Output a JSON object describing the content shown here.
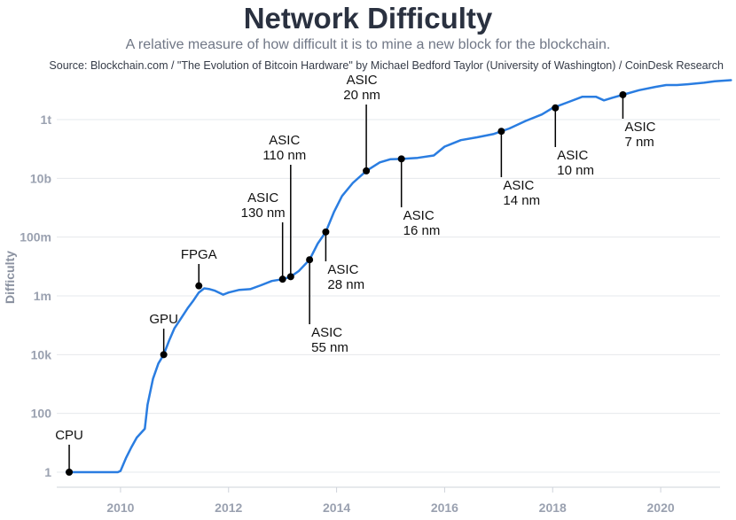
{
  "title": "Network Difficulty",
  "subtitle": "A relative measure of how difficult it is to mine a new block for the blockchain.",
  "source": "Source: Blockchain.com / \"The Evolution of Bitcoin Hardware\" by Michael Bedford Taylor (University of Washington) / CoinDesk Research",
  "colors": {
    "line": "#2a7de1",
    "marker": "#000000",
    "axis_text": "#9aa1b0",
    "grid": "#e6e8ec"
  },
  "chart_data": {
    "type": "line",
    "title": "Network Difficulty",
    "ylabel": "Difficulty",
    "xlabel": "",
    "y_scale": "log",
    "ylim": [
      0.8,
      6000000000000
    ],
    "xlim": [
      2009.0,
      2021.3
    ],
    "y_ticks": [
      {
        "value": 1,
        "label": "1"
      },
      {
        "value": 100,
        "label": "100"
      },
      {
        "value": 10000,
        "label": "10k"
      },
      {
        "value": 1000000,
        "label": "1m"
      },
      {
        "value": 100000000,
        "label": "100m"
      },
      {
        "value": 10000000000,
        "label": "10b"
      },
      {
        "value": 1000000000000,
        "label": "1t"
      }
    ],
    "x_ticks": [
      {
        "value": 2010,
        "label": "2010"
      },
      {
        "value": 2012,
        "label": "2012"
      },
      {
        "value": 2014,
        "label": "2014"
      },
      {
        "value": 2016,
        "label": "2016"
      },
      {
        "value": 2018,
        "label": "2018"
      },
      {
        "value": 2020,
        "label": "2020"
      }
    ],
    "grid": "horizontal",
    "series": [
      {
        "points": [
          [
            2009.0,
            1
          ],
          [
            2009.95,
            1
          ],
          [
            2010.0,
            1.1
          ],
          [
            2010.1,
            3
          ],
          [
            2010.2,
            7
          ],
          [
            2010.3,
            15
          ],
          [
            2010.45,
            30
          ],
          [
            2010.5,
            200
          ],
          [
            2010.6,
            1500
          ],
          [
            2010.7,
            5000
          ],
          [
            2010.8,
            10000
          ],
          [
            2010.9,
            30000
          ],
          [
            2011.0,
            80000
          ],
          [
            2011.1,
            150000
          ],
          [
            2011.25,
            400000
          ],
          [
            2011.35,
            700000
          ],
          [
            2011.45,
            1300000
          ],
          [
            2011.55,
            1800000
          ],
          [
            2011.65,
            1700000
          ],
          [
            2011.75,
            1500000
          ],
          [
            2011.9,
            1100000
          ],
          [
            2012.0,
            1300000
          ],
          [
            2012.2,
            1600000
          ],
          [
            2012.4,
            1700000
          ],
          [
            2012.6,
            2300000
          ],
          [
            2012.8,
            3200000
          ],
          [
            2013.0,
            3700000
          ],
          [
            2013.15,
            4500000
          ],
          [
            2013.3,
            7000000
          ],
          [
            2013.5,
            17000000
          ],
          [
            2013.65,
            60000000
          ],
          [
            2013.8,
            150000000
          ],
          [
            2013.95,
            700000000
          ],
          [
            2014.1,
            2500000000
          ],
          [
            2014.3,
            7000000000
          ],
          [
            2014.55,
            18000000000
          ],
          [
            2014.8,
            35000000000
          ],
          [
            2015.0,
            45000000000
          ],
          [
            2015.2,
            46000000000
          ],
          [
            2015.5,
            50000000000
          ],
          [
            2015.8,
            60000000000
          ],
          [
            2016.0,
            120000000000
          ],
          [
            2016.3,
            200000000000
          ],
          [
            2016.6,
            250000000000
          ],
          [
            2016.9,
            320000000000
          ],
          [
            2017.2,
            500000000000
          ],
          [
            2017.5,
            900000000000
          ],
          [
            2017.8,
            1500000000000
          ],
          [
            2018.0,
            2500000000000
          ],
          [
            2018.3,
            4000000000000
          ],
          [
            2018.55,
            6000000000000
          ],
          [
            2018.8,
            6000000000000
          ],
          [
            2018.95,
            4500000000000
          ],
          [
            2019.1,
            5500000000000
          ],
          [
            2019.3,
            7000000000000
          ],
          [
            2019.6,
            10000000000000
          ],
          [
            2019.9,
            13000000000000
          ],
          [
            2020.1,
            15000000000000
          ],
          [
            2020.3,
            15000000000000
          ],
          [
            2020.5,
            16000000000000
          ],
          [
            2020.8,
            18000000000000
          ],
          [
            2021.0,
            20000000000000
          ],
          [
            2021.3,
            22000000000000
          ]
        ]
      }
    ],
    "annotations": [
      {
        "x": 2009.05,
        "y": 1,
        "lines": [
          "CPU"
        ]
      },
      {
        "x": 2010.8,
        "y": 10000,
        "lines": [
          "GPU"
        ]
      },
      {
        "x": 2011.45,
        "y": 2200000,
        "lines": [
          "FPGA"
        ]
      },
      {
        "x": 2013.0,
        "y": 3700000,
        "lines": [
          "ASIC",
          "130 nm"
        ]
      },
      {
        "x": 2013.15,
        "y": 4500000,
        "lines": [
          "ASIC",
          "110 nm"
        ]
      },
      {
        "x": 2013.5,
        "y": 17000000,
        "lines": [
          "ASIC",
          "55 nm"
        ]
      },
      {
        "x": 2013.8,
        "y": 150000000,
        "lines": [
          "ASIC",
          "28 nm"
        ]
      },
      {
        "x": 2014.55,
        "y": 18000000000,
        "lines": [
          "ASIC",
          "20 nm"
        ]
      },
      {
        "x": 2015.2,
        "y": 46000000000,
        "lines": [
          "ASIC",
          "16 nm"
        ]
      },
      {
        "x": 2017.05,
        "y": 400000000000,
        "lines": [
          "ASIC",
          "14 nm"
        ]
      },
      {
        "x": 2018.05,
        "y": 2500000000000,
        "lines": [
          "ASIC",
          "10 nm"
        ]
      },
      {
        "x": 2019.3,
        "y": 7000000000000,
        "lines": [
          "ASIC",
          "7 nm"
        ]
      }
    ]
  }
}
